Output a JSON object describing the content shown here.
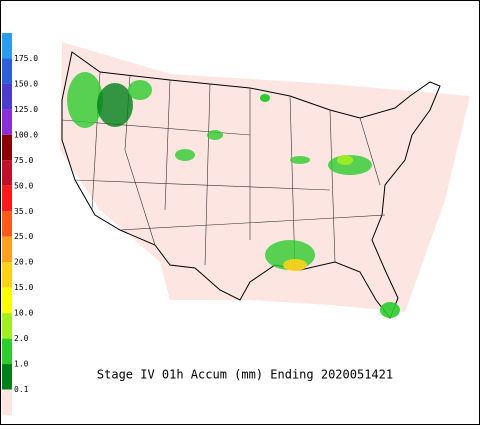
{
  "legend": {
    "labels": [
      "175.0",
      "150.0",
      "125.0",
      "100.0",
      "75.0",
      "50.0",
      "35.0",
      "25.0",
      "20.0",
      "15.0",
      "10.0",
      "2.0",
      "1.0",
      "0.1"
    ],
    "colors": [
      "#2a9cf0",
      "#2f5fd8",
      "#4b3ccc",
      "#8a2ed8",
      "#8b0000",
      "#c0102a",
      "#ff1a1a",
      "#ff5a1a",
      "#ffa020",
      "#ffd21a",
      "#ffff00",
      "#a0f020",
      "#2ecc2e",
      "#00801a",
      "#fde6e1"
    ]
  },
  "caption": "Stage IV 01h Accum (mm) Ending 2020051421"
}
